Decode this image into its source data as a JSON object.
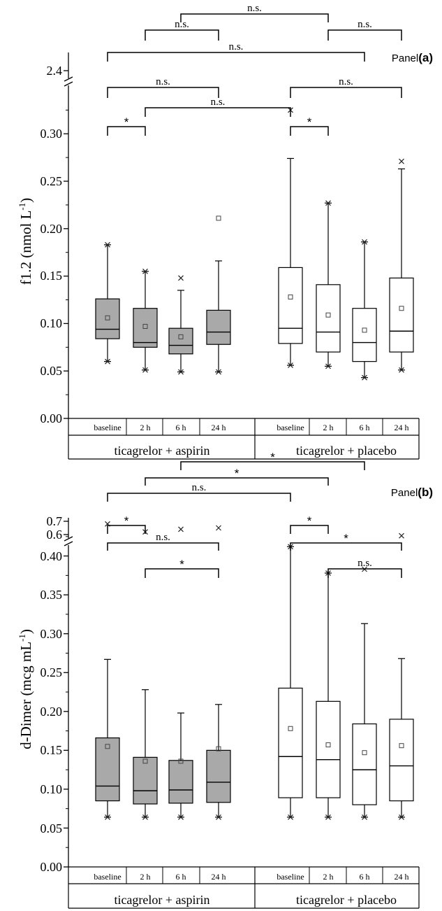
{
  "chart_data": [
    {
      "type": "box",
      "panel_word": "Panel",
      "panel_tag": "(a)",
      "ylabel": "f1.2 (nmol L",
      "ylabel_sup": "-1",
      "ylabel_end": ")",
      "ylim": [
        0,
        0.35
      ],
      "broken_axis": true,
      "upper_tick": "2.4",
      "yticks": [
        "0.00",
        "0.05",
        "0.10",
        "0.15",
        "0.20",
        "0.25",
        "0.30"
      ],
      "groups": [
        "ticagrelor + aspirin",
        "ticagrelor + placebo"
      ],
      "categories": [
        "baseline",
        "2 h",
        "6 h",
        "24 h"
      ],
      "series": [
        {
          "group": "ticagrelor + aspirin",
          "fill": "#a9a9a9",
          "boxes": [
            {
              "category": "baseline",
              "min": 0.06,
              "q1": 0.084,
              "median": 0.094,
              "q3": 0.126,
              "max": 0.183,
              "mean": 0.106,
              "outliers_low": [
                0.06
              ],
              "outliers_high": [
                0.183
              ]
            },
            {
              "category": "2 h",
              "min": 0.051,
              "q1": 0.075,
              "median": 0.08,
              "q3": 0.116,
              "max": 0.155,
              "mean": 0.097,
              "outliers_low": [
                0.051
              ],
              "outliers_high": [
                0.155
              ]
            },
            {
              "category": "6 h",
              "min": 0.049,
              "q1": 0.068,
              "median": 0.077,
              "q3": 0.095,
              "max": 0.135,
              "mean": 0.086,
              "outliers_low": [
                0.049
              ],
              "outliers_high": [
                0.148
              ]
            },
            {
              "category": "24 h",
              "min": 0.049,
              "q1": 0.078,
              "median": 0.091,
              "q3": 0.114,
              "max": 0.166,
              "mean": 0.211,
              "outliers_low": [
                0.049
              ],
              "outliers_high": []
            }
          ]
        },
        {
          "group": "ticagrelor + placebo",
          "fill": "#ffffff",
          "boxes": [
            {
              "category": "baseline",
              "min": 0.056,
              "q1": 0.079,
              "median": 0.095,
              "q3": 0.159,
              "max": 0.274,
              "mean": 0.128,
              "outliers_low": [
                0.056
              ],
              "outliers_high": [
                0.325
              ]
            },
            {
              "category": "2 h",
              "min": 0.055,
              "q1": 0.07,
              "median": 0.091,
              "q3": 0.141,
              "max": 0.227,
              "mean": 0.109,
              "outliers_low": [
                0.055
              ],
              "outliers_high": [
                0.227
              ]
            },
            {
              "category": "6 h",
              "min": 0.043,
              "q1": 0.06,
              "median": 0.08,
              "q3": 0.116,
              "max": 0.186,
              "mean": 0.093,
              "outliers_low": [
                0.043
              ],
              "outliers_high": [
                0.186
              ]
            },
            {
              "category": "24 h",
              "min": 0.051,
              "q1": 0.07,
              "median": 0.092,
              "q3": 0.148,
              "max": 0.263,
              "mean": 0.116,
              "outliers_low": [
                0.051
              ],
              "outliers_high": [
                0.271
              ]
            }
          ]
        }
      ],
      "significance": [
        {
          "from": "ticagrelor + aspirin|6 h",
          "to": "ticagrelor + placebo|2 h",
          "label": "n.s."
        },
        {
          "from": "ticagrelor + aspirin|2 h",
          "to": "ticagrelor + aspirin|24 h",
          "label": "n.s."
        },
        {
          "from": "ticagrelor + placebo|2 h",
          "to": "ticagrelor + placebo|24 h",
          "label": "n.s."
        },
        {
          "from": "ticagrelor + aspirin|baseline",
          "to": "ticagrelor + placebo|6 h",
          "label": "n.s."
        },
        {
          "from": "ticagrelor + aspirin|baseline",
          "to": "ticagrelor + aspirin|24 h",
          "label": "n.s."
        },
        {
          "from": "ticagrelor + placebo|baseline",
          "to": "ticagrelor + placebo|24 h",
          "label": "n.s."
        },
        {
          "from": "ticagrelor + aspirin|2 h",
          "to": "ticagrelor + placebo|baseline",
          "label": "n.s."
        },
        {
          "from": "ticagrelor + aspirin|baseline",
          "to": "ticagrelor + aspirin|2 h",
          "label": "*"
        },
        {
          "from": "ticagrelor + placebo|baseline",
          "to": "ticagrelor + placebo|2 h",
          "label": "*"
        }
      ]
    },
    {
      "type": "box",
      "panel_word": "Panel",
      "panel_tag": "(b)",
      "ylabel": "d-Dimer (mcg mL",
      "ylabel_sup": "-1",
      "ylabel_end": ")",
      "ylim": [
        0,
        0.45
      ],
      "broken_axis": true,
      "upper_ticks": [
        "0.6",
        "0.7"
      ],
      "yticks": [
        "0.00",
        "0.05",
        "0.10",
        "0.15",
        "0.20",
        "0.25",
        "0.30",
        "0.35",
        "0.40"
      ],
      "groups": [
        "ticagrelor + aspirin",
        "ticagrelor + placebo"
      ],
      "categories": [
        "baseline",
        "2 h",
        "6 h",
        "24 h"
      ],
      "series": [
        {
          "group": "ticagrelor + aspirin",
          "fill": "#a9a9a9",
          "boxes": [
            {
              "category": "baseline",
              "min": 0.064,
              "q1": 0.085,
              "median": 0.104,
              "q3": 0.166,
              "max": 0.267,
              "mean": 0.155,
              "outliers_low": [
                0.064
              ],
              "outliers_high": [
                0.68
              ]
            },
            {
              "category": "2 h",
              "min": 0.064,
              "q1": 0.081,
              "median": 0.098,
              "q3": 0.141,
              "max": 0.228,
              "mean": 0.136,
              "outliers_low": [
                0.064
              ],
              "outliers_high": [
                0.62
              ]
            },
            {
              "category": "6 h",
              "min": 0.064,
              "q1": 0.082,
              "median": 0.099,
              "q3": 0.137,
              "max": 0.198,
              "mean": 0.136,
              "outliers_low": [
                0.064
              ],
              "outliers_high": [
                0.64
              ]
            },
            {
              "category": "24 h",
              "min": 0.064,
              "q1": 0.083,
              "median": 0.109,
              "q3": 0.15,
              "max": 0.209,
              "mean": 0.152,
              "outliers_low": [
                0.064
              ],
              "outliers_high": [
                0.65
              ]
            }
          ]
        },
        {
          "group": "ticagrelor + placebo",
          "fill": "#ffffff",
          "boxes": [
            {
              "category": "baseline",
              "min": 0.064,
              "q1": 0.089,
              "median": 0.142,
              "q3": 0.23,
              "max": 0.412,
              "mean": 0.178,
              "outliers_low": [
                0.064
              ],
              "outliers_high": [
                0.412
              ]
            },
            {
              "category": "2 h",
              "min": 0.064,
              "q1": 0.089,
              "median": 0.138,
              "q3": 0.213,
              "max": 0.378,
              "mean": 0.157,
              "outliers_low": [
                0.064
              ],
              "outliers_high": [
                0.378
              ]
            },
            {
              "category": "6 h",
              "min": 0.064,
              "q1": 0.08,
              "median": 0.125,
              "q3": 0.184,
              "max": 0.313,
              "mean": 0.147,
              "outliers_low": [
                0.064
              ],
              "outliers_high": [
                0.383
              ]
            },
            {
              "category": "24 h",
              "min": 0.064,
              "q1": 0.085,
              "median": 0.13,
              "q3": 0.19,
              "max": 0.268,
              "mean": 0.156,
              "outliers_low": [
                0.064
              ],
              "outliers_high": [
                0.426
              ]
            }
          ]
        }
      ],
      "significance": [
        {
          "from": "ticagrelor + aspirin|6 h",
          "to": "ticagrelor + placebo|6 h",
          "label": "*"
        },
        {
          "from": "ticagrelor + aspirin|2 h",
          "to": "ticagrelor + placebo|2 h",
          "label": "*"
        },
        {
          "from": "ticagrelor + aspirin|baseline",
          "to": "ticagrelor + placebo|baseline",
          "label": "n.s."
        },
        {
          "from": "ticagrelor + aspirin|baseline",
          "to": "ticagrelor + aspirin|2 h",
          "label": "*"
        },
        {
          "from": "ticagrelor + aspirin|baseline",
          "to": "ticagrelor + aspirin|24 h",
          "label": "n.s."
        },
        {
          "from": "ticagrelor + aspirin|2 h",
          "to": "ticagrelor + aspirin|24 h",
          "label": "*"
        },
        {
          "from": "ticagrelor + placebo|baseline",
          "to": "ticagrelor + placebo|2 h",
          "label": "*"
        },
        {
          "from": "ticagrelor + placebo|baseline",
          "to": "ticagrelor + placebo|24 h",
          "label": "*"
        },
        {
          "from": "ticagrelor + placebo|2 h",
          "to": "ticagrelor + placebo|24 h",
          "label": "n.s."
        }
      ]
    }
  ]
}
